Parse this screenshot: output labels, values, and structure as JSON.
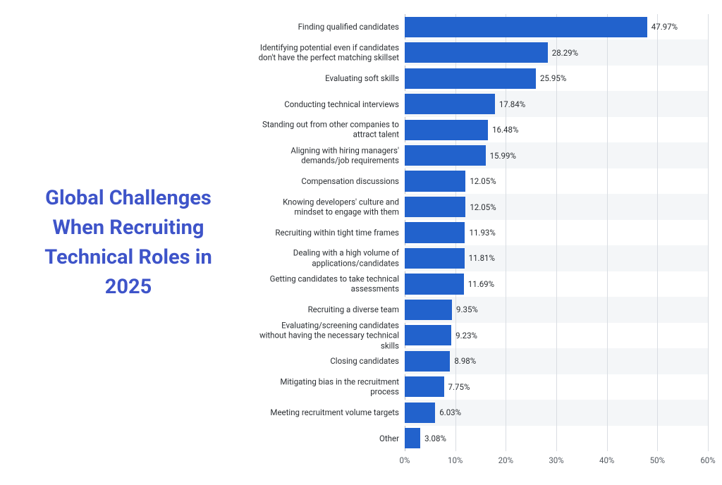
{
  "title": "Global Challenges When Recruiting Technical Roles in 2025",
  "chart": {
    "type": "bar-horizontal",
    "bar_color": "#2262cc",
    "band_color": "#f4f6f8",
    "grid_color": "#d9dde2",
    "axis_color": "#b7bcc3",
    "label_color": "#2b2f33",
    "tick_label_color": "#555b62",
    "label_fontsize": 11.5,
    "title_fontsize": 29,
    "title_color": "#3e54c9",
    "xlim": [
      0,
      60
    ],
    "xtick_step": 10,
    "xtick_suffix": "%",
    "value_suffix": "%",
    "bar_height_ratio": 0.8,
    "categories": [
      "Finding qualified candidates",
      "Identifying potential even if candidates don't have the perfect matching skillset",
      "Evaluating soft skills",
      "Conducting technical interviews",
      "Standing out from other companies to attract talent",
      "Aligning with hiring managers' demands/job requirements",
      "Compensation discussions",
      "Knowing developers' culture and mindset to engage with them",
      "Recruiting within tight time frames",
      "Dealing with a high volume of applications/candidates",
      "Getting candidates to take technical assessments",
      "Recruiting a diverse team",
      "Evaluating/screening candidates without having the necessary technical skills",
      "Closing candidates",
      "Mitigating bias in the recruitment process",
      "Meeting recruitment volume targets",
      "Other"
    ],
    "values": [
      47.97,
      28.29,
      25.95,
      17.84,
      16.48,
      15.99,
      12.05,
      12.05,
      11.93,
      11.81,
      11.69,
      9.35,
      9.23,
      8.98,
      7.75,
      6.03,
      3.08
    ]
  }
}
